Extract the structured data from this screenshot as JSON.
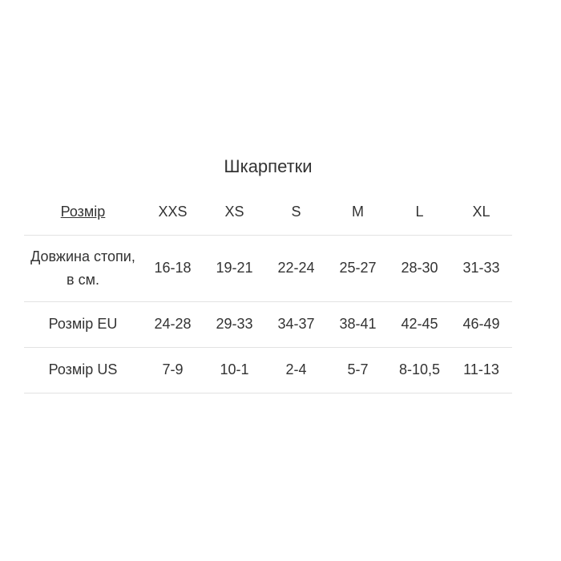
{
  "page": {
    "title": "Шкарпетки"
  },
  "size_table": {
    "header": {
      "label": "Розмір",
      "columns": [
        "XXS",
        "XS",
        "S",
        "M",
        "L",
        "XL"
      ]
    },
    "rows": [
      {
        "label": "Довжина стопи, в см.",
        "values": [
          "16-18",
          "19-21",
          "22-24",
          "25-27",
          "28-30",
          "31-33"
        ]
      },
      {
        "label": "Розмір EU",
        "values": [
          "24-28",
          "29-33",
          "34-37",
          "38-41",
          "42-45",
          "46-49"
        ]
      },
      {
        "label": "Розмір US",
        "values": [
          "7-9",
          "10-1",
          "2-4",
          "5-7",
          "8-10,5",
          "11-13"
        ]
      }
    ]
  },
  "colors": {
    "text": "#333333",
    "divider": "#e2e2e2",
    "background": "#ffffff"
  }
}
